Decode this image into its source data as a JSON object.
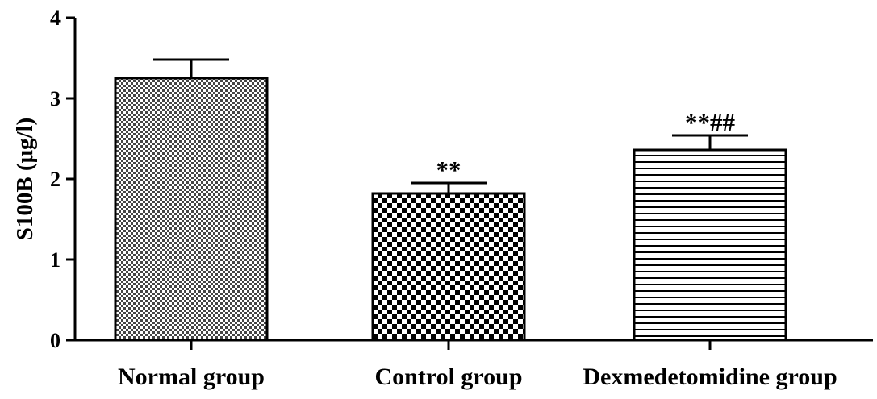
{
  "chart_data": {
    "type": "bar",
    "categories": [
      "Normal group",
      "Control group",
      "Dexmedetomidine group"
    ],
    "values": [
      3.25,
      1.82,
      2.36
    ],
    "error": [
      0.23,
      0.13,
      0.18
    ],
    "annotations": [
      "",
      "**",
      "**##"
    ],
    "patterns": [
      "dense-check",
      "checkerboard",
      "horizontal-lines"
    ],
    "title": "",
    "xlabel": "",
    "ylabel": "S100B (μg/l)",
    "ylim": [
      0,
      4
    ],
    "yticks": [
      "0",
      "1",
      "2",
      "3",
      "4"
    ],
    "grid": false,
    "legend": "none",
    "bar_fill": "#ffffff",
    "ink": "#000000"
  }
}
